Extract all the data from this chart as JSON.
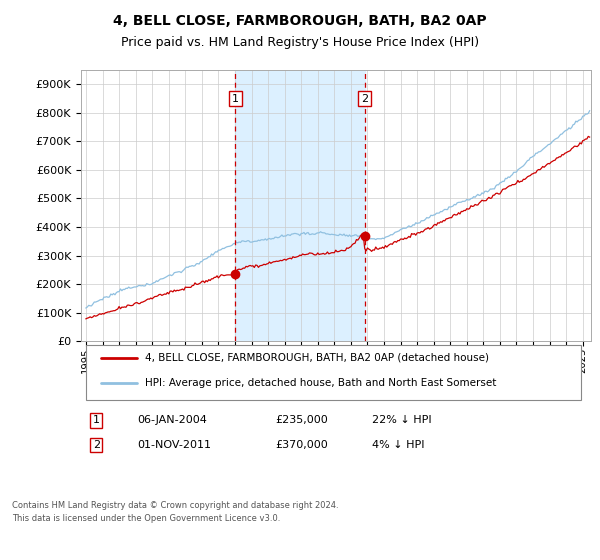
{
  "title": "4, BELL CLOSE, FARMBOROUGH, BATH, BA2 0AP",
  "subtitle": "Price paid vs. HM Land Registry's House Price Index (HPI)",
  "ytick_values": [
    0,
    100000,
    200000,
    300000,
    400000,
    500000,
    600000,
    700000,
    800000,
    900000
  ],
  "ylim": [
    0,
    950000
  ],
  "xlim_start": 1994.7,
  "xlim_end": 2025.5,
  "event1_date": 2004.03,
  "event1_label": "1",
  "event1_price": 235000,
  "event1_hpi_pct": "22% ↓ HPI",
  "event1_date_str": "06-JAN-2004",
  "event2_date": 2011.83,
  "event2_label": "2",
  "event2_price": 370000,
  "event2_hpi_pct": "4% ↓ HPI",
  "event2_date_str": "01-NOV-2011",
  "hpi_color": "#90C0E0",
  "price_color": "#CC0000",
  "shade_color": "#DCF0FF",
  "vline_color": "#CC0000",
  "marker_color": "#CC0000",
  "legend_entry1": "4, BELL CLOSE, FARMBOROUGH, BATH, BA2 0AP (detached house)",
  "legend_entry2": "HPI: Average price, detached house, Bath and North East Somerset",
  "footnote1": "Contains HM Land Registry data © Crown copyright and database right 2024.",
  "footnote2": "This data is licensed under the Open Government Licence v3.0.",
  "background_color": "#FFFFFF",
  "plot_bg_color": "#FFFFFF",
  "grid_color": "#CCCCCC",
  "title_fontsize": 10,
  "subtitle_fontsize": 9
}
